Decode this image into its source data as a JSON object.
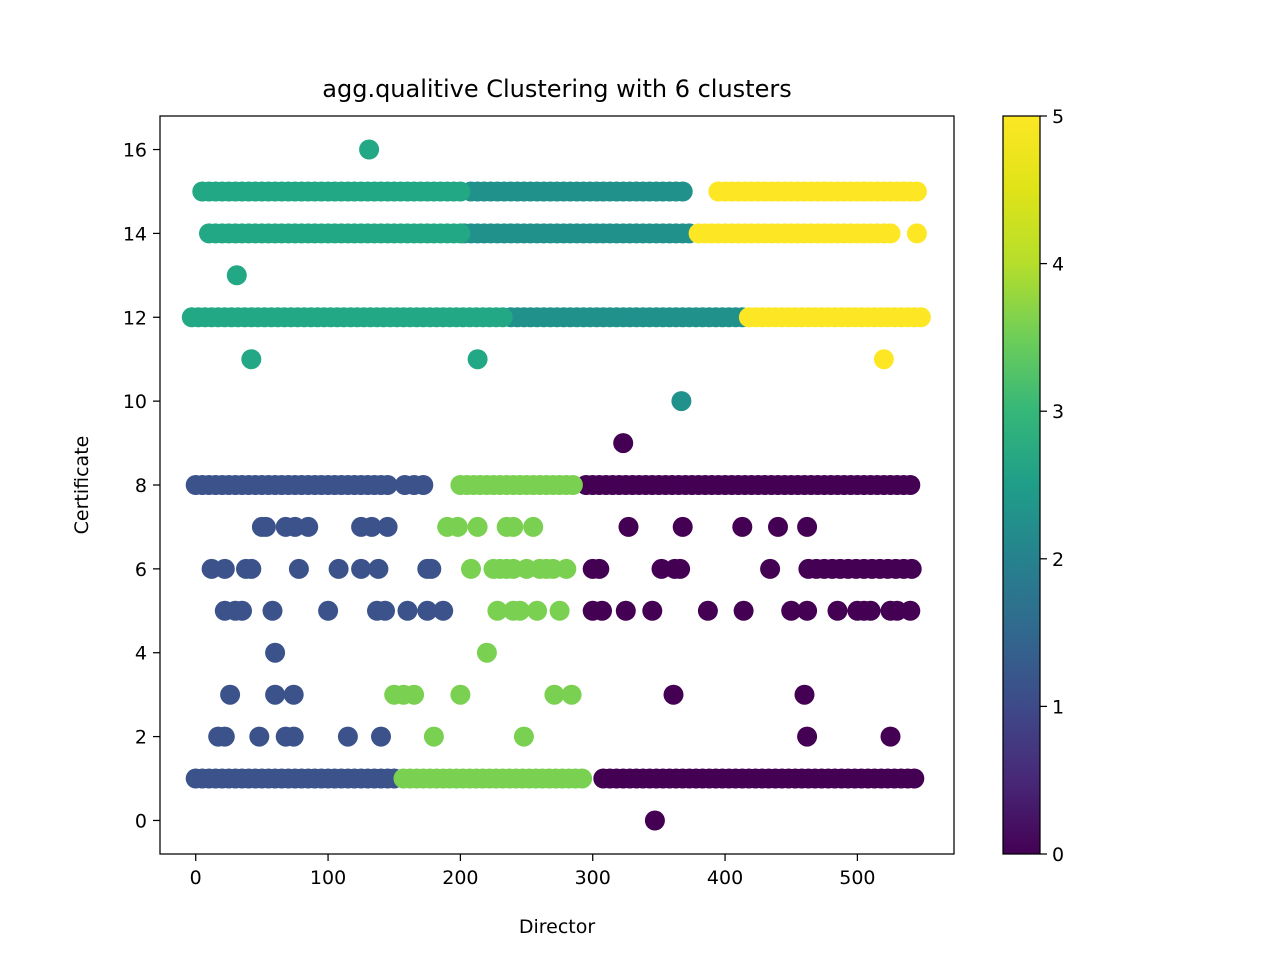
{
  "chart_data": {
    "type": "scatter",
    "title": "agg.qualitive Clustering with 6 clusters",
    "xlabel": "Director",
    "ylabel": "Certificate",
    "xlim": [
      -27,
      573
    ],
    "ylim": [
      -0.8,
      16.8
    ],
    "x_ticks": [
      0,
      100,
      200,
      300,
      400,
      500
    ],
    "y_ticks": [
      0,
      2,
      4,
      6,
      8,
      10,
      12,
      14,
      16
    ],
    "grid": false,
    "colormap": "viridis",
    "colorbar": {
      "min": 0,
      "max": 5,
      "ticks": [
        0,
        1,
        2,
        3,
        4,
        5
      ]
    },
    "cluster_colors": [
      "#440154",
      "#3b528b",
      "#21918c",
      "#22a884",
      "#7ad151",
      "#fde725"
    ],
    "clusters": [
      {
        "id": 0,
        "runs": [
          {
            "y": 1,
            "x_start": 308,
            "x_end": 545,
            "step": 5
          },
          {
            "y": 8,
            "x_start": 295,
            "x_end": 540,
            "step": 5
          },
          {
            "y": 6,
            "x_start": 463,
            "x_end": 545,
            "step": 6
          }
        ],
        "points": [
          [
            347,
            0
          ],
          [
            323,
            9
          ],
          [
            361,
            3
          ],
          [
            460,
            3
          ],
          [
            462,
            2
          ],
          [
            525,
            2
          ],
          [
            300,
            5
          ],
          [
            307,
            5
          ],
          [
            325,
            5
          ],
          [
            345,
            5
          ],
          [
            387,
            5
          ],
          [
            414,
            5
          ],
          [
            450,
            5
          ],
          [
            462,
            5
          ],
          [
            485,
            5
          ],
          [
            500,
            5
          ],
          [
            505,
            5
          ],
          [
            510,
            5
          ],
          [
            525,
            5
          ],
          [
            530,
            5
          ],
          [
            540,
            5
          ],
          [
            300,
            6
          ],
          [
            305,
            6
          ],
          [
            352,
            6
          ],
          [
            362,
            6
          ],
          [
            366,
            6
          ],
          [
            434,
            6
          ],
          [
            327,
            7
          ],
          [
            368,
            7
          ],
          [
            413,
            7
          ],
          [
            440,
            7
          ],
          [
            462,
            7
          ]
        ]
      },
      {
        "id": 1,
        "runs": [
          {
            "y": 1,
            "x_start": 0,
            "x_end": 152,
            "step": 5
          },
          {
            "y": 8,
            "x_start": 0,
            "x_end": 145,
            "step": 5
          }
        ],
        "points": [
          [
            158,
            8
          ],
          [
            165,
            8
          ],
          [
            172,
            8
          ],
          [
            50,
            7
          ],
          [
            53,
            7
          ],
          [
            68,
            7
          ],
          [
            75,
            7
          ],
          [
            85,
            7
          ],
          [
            125,
            7
          ],
          [
            133,
            7
          ],
          [
            145,
            7
          ],
          [
            12,
            6
          ],
          [
            22,
            6
          ],
          [
            38,
            6
          ],
          [
            42,
            6
          ],
          [
            78,
            6
          ],
          [
            108,
            6
          ],
          [
            125,
            6
          ],
          [
            138,
            6
          ],
          [
            175,
            6
          ],
          [
            178,
            6
          ],
          [
            22,
            5
          ],
          [
            30,
            5
          ],
          [
            35,
            5
          ],
          [
            58,
            5
          ],
          [
            100,
            5
          ],
          [
            137,
            5
          ],
          [
            143,
            5
          ],
          [
            160,
            5
          ],
          [
            175,
            5
          ],
          [
            187,
            5
          ],
          [
            60,
            4
          ],
          [
            26,
            3
          ],
          [
            60,
            3
          ],
          [
            74,
            3
          ],
          [
            17,
            2
          ],
          [
            22,
            2
          ],
          [
            48,
            2
          ],
          [
            68,
            2
          ],
          [
            74,
            2
          ],
          [
            115,
            2
          ],
          [
            140,
            2
          ]
        ]
      },
      {
        "id": 2,
        "runs": [
          {
            "y": 15,
            "x_start": 208,
            "x_end": 370,
            "step": 5
          },
          {
            "y": 14,
            "x_start": 203,
            "x_end": 375,
            "step": 5
          },
          {
            "y": 12,
            "x_start": 238,
            "x_end": 415,
            "step": 5
          }
        ],
        "points": [
          [
            367,
            10
          ]
        ]
      },
      {
        "id": 3,
        "runs": [
          {
            "y": 15,
            "x_start": 5,
            "x_end": 200,
            "step": 5
          },
          {
            "y": 14,
            "x_start": 10,
            "x_end": 200,
            "step": 5
          },
          {
            "y": 12,
            "x_start": -3,
            "x_end": 235,
            "step": 5
          }
        ],
        "points": [
          [
            131,
            16
          ],
          [
            31,
            13
          ],
          [
            42,
            11
          ],
          [
            213,
            11
          ]
        ]
      },
      {
        "id": 4,
        "runs": [
          {
            "y": 1,
            "x_start": 157,
            "x_end": 295,
            "step": 5
          },
          {
            "y": 8,
            "x_start": 200,
            "x_end": 285,
            "step": 5
          }
        ],
        "points": [
          [
            190,
            7
          ],
          [
            198,
            7
          ],
          [
            213,
            7
          ],
          [
            235,
            7
          ],
          [
            240,
            7
          ],
          [
            255,
            7
          ],
          [
            208,
            6
          ],
          [
            225,
            6
          ],
          [
            230,
            6
          ],
          [
            235,
            6
          ],
          [
            240,
            6
          ],
          [
            250,
            6
          ],
          [
            260,
            6
          ],
          [
            265,
            6
          ],
          [
            270,
            6
          ],
          [
            280,
            6
          ],
          [
            228,
            5
          ],
          [
            240,
            5
          ],
          [
            245,
            5
          ],
          [
            258,
            5
          ],
          [
            275,
            5
          ],
          [
            220,
            4
          ],
          [
            150,
            3
          ],
          [
            157,
            3
          ],
          [
            165,
            3
          ],
          [
            200,
            3
          ],
          [
            271,
            3
          ],
          [
            284,
            3
          ],
          [
            180,
            2
          ],
          [
            248,
            2
          ]
        ]
      },
      {
        "id": 5,
        "runs": [
          {
            "y": 15,
            "x_start": 395,
            "x_end": 548,
            "step": 5
          },
          {
            "y": 14,
            "x_start": 380,
            "x_end": 525,
            "step": 5
          },
          {
            "y": 12,
            "x_start": 418,
            "x_end": 548,
            "step": 5
          }
        ],
        "points": [
          [
            545,
            14
          ],
          [
            520,
            11
          ]
        ]
      }
    ]
  }
}
